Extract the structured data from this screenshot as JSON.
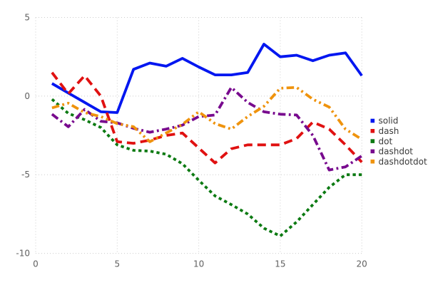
{
  "chart_data": {
    "type": "line",
    "title": "",
    "xlabel": "",
    "ylabel": "",
    "xlim": [
      0,
      20
    ],
    "ylim": [
      -10,
      5
    ],
    "x_ticks": [
      0,
      5,
      10,
      15,
      20
    ],
    "y_ticks": [
      5,
      0,
      -5,
      -10
    ],
    "grid": true,
    "legend_position": "right",
    "background_color": "#ffffff",
    "grid_color": "#cccccc",
    "tick_label_color": "#606060",
    "legend_text_color": "#3a3a3a",
    "x": [
      1,
      2,
      3,
      4,
      5,
      6,
      7,
      8,
      9,
      10,
      11,
      12,
      13,
      14,
      15,
      16,
      17,
      18,
      19,
      20
    ],
    "series": [
      {
        "name": "solid",
        "line_style": "solid",
        "color": "#0016f0",
        "values": [
          0.8,
          0.2,
          -0.4,
          -1.0,
          -1.05,
          1.7,
          2.1,
          1.9,
          2.4,
          1.85,
          1.35,
          1.35,
          1.5,
          3.3,
          2.5,
          2.6,
          2.25,
          2.6,
          2.75,
          1.3
        ]
      },
      {
        "name": "dash",
        "line_style": "dash",
        "color": "#e01111",
        "values": [
          1.5,
          0.15,
          1.3,
          0.0,
          -2.9,
          -3.0,
          -2.8,
          -2.5,
          -2.35,
          -3.3,
          -4.25,
          -3.35,
          -3.1,
          -3.1,
          -3.1,
          -2.7,
          -1.65,
          -2.1,
          -3.1,
          -4.2
        ]
      },
      {
        "name": "dot",
        "line_style": "dot",
        "color": "#0c7a12",
        "values": [
          -0.2,
          -1.1,
          -1.5,
          -2.0,
          -3.1,
          -3.45,
          -3.5,
          -3.7,
          -4.3,
          -5.35,
          -6.35,
          -6.9,
          -7.5,
          -8.4,
          -8.9,
          -8.0,
          -6.9,
          -5.8,
          -5.0,
          -5.0
        ]
      },
      {
        "name": "dashdot",
        "line_style": "dashdot",
        "color": "#780a8e",
        "values": [
          -1.15,
          -1.95,
          -0.85,
          -1.6,
          -1.7,
          -2.05,
          -2.3,
          -2.1,
          -1.85,
          -1.3,
          -1.2,
          0.55,
          -0.4,
          -1.0,
          -1.15,
          -1.2,
          -2.5,
          -4.7,
          -4.5,
          -3.8
        ]
      },
      {
        "name": "dashdotdot",
        "line_style": "dashdotdot",
        "color": "#ef930d",
        "values": [
          -0.75,
          -0.45,
          -1.05,
          -1.3,
          -1.75,
          -1.95,
          -2.9,
          -2.35,
          -1.8,
          -1.0,
          -1.75,
          -2.1,
          -1.3,
          -0.65,
          0.5,
          0.55,
          -0.2,
          -0.7,
          -2.1,
          -2.75
        ]
      }
    ]
  }
}
